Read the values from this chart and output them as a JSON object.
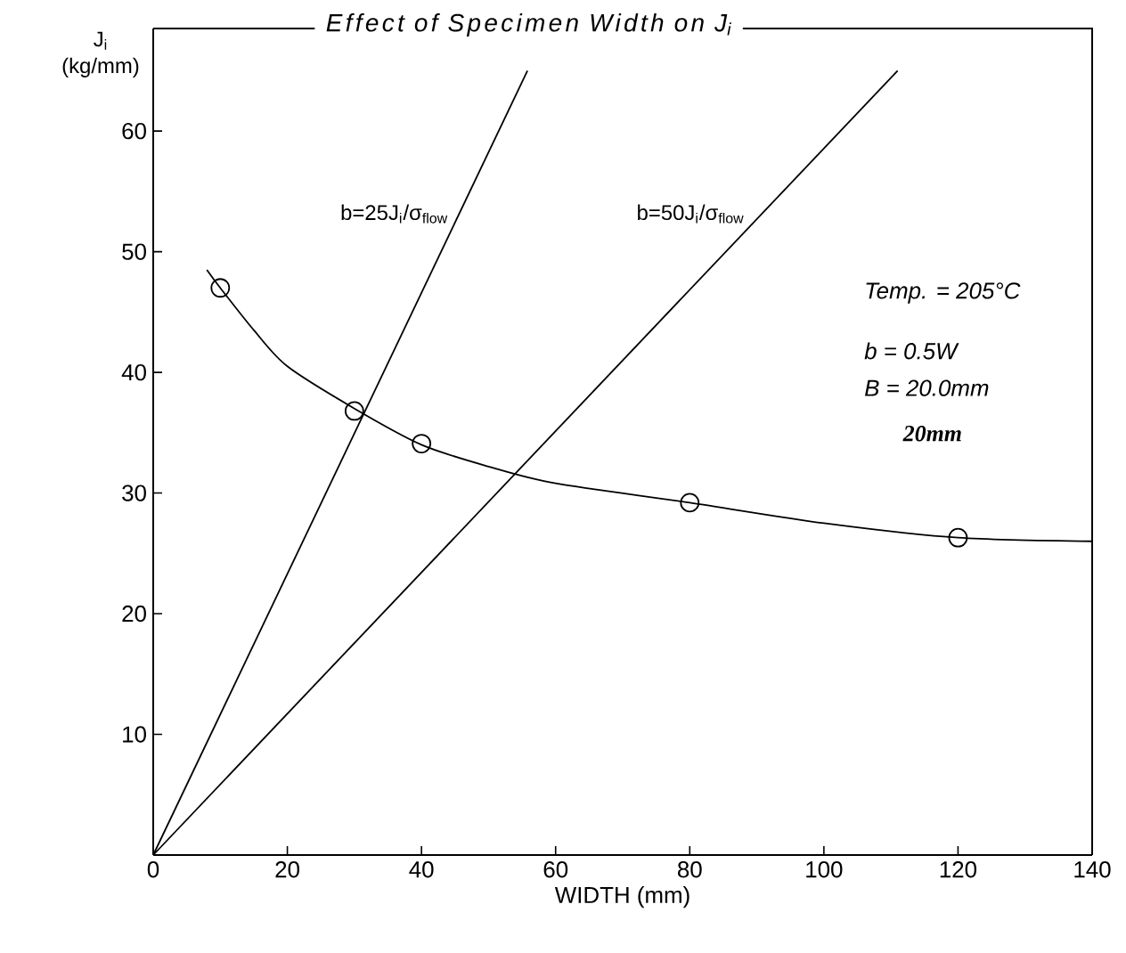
{
  "chart_data": {
    "type": "line",
    "title": "Effect of Specimen Width on J$_{i}$",
    "xlabel": "WIDTH   (mm)",
    "ylabel": "J$_{i}$ (kg/mm)",
    "xlim": [
      0,
      140
    ],
    "ylim": [
      0,
      68.5
    ],
    "xticks": [
      0,
      20,
      40,
      60,
      80,
      100,
      120,
      140
    ],
    "yticks": [
      10,
      20,
      30,
      40,
      50,
      60
    ],
    "series": [
      {
        "color": "#000000",
        "marker": "none",
        "x": [
          8,
          10,
          15,
          20,
          30,
          40,
          50,
          60,
          80,
          100,
          120,
          140
        ],
        "values": [
          48.5,
          47,
          43.5,
          40.5,
          37,
          34,
          32.2,
          30.8,
          29.2,
          27.5,
          26.3,
          26
        ]
      },
      {
        "type": "scatter",
        "color": "#000000",
        "marker": "circle",
        "x": [
          10,
          30,
          40,
          80,
          120
        ],
        "values": [
          47,
          36.8,
          34.1,
          29.2,
          26.3
        ]
      },
      {
        "name": "b=25J$_{i}$/σ$_{flow}$",
        "color": "#000000",
        "marker": "none",
        "x": [
          0,
          55.8
        ],
        "values": [
          0,
          65
        ]
      },
      {
        "name": "b=50J$_{i}$/σ$_{flow}$",
        "color": "#000000",
        "marker": "none",
        "x": [
          0,
          111
        ],
        "values": [
          0,
          65
        ]
      }
    ],
    "annotations": [
      "Temp. = 205°C",
      "b = 0.5W",
      "B = 20.0mm",
      "20mm"
    ]
  }
}
